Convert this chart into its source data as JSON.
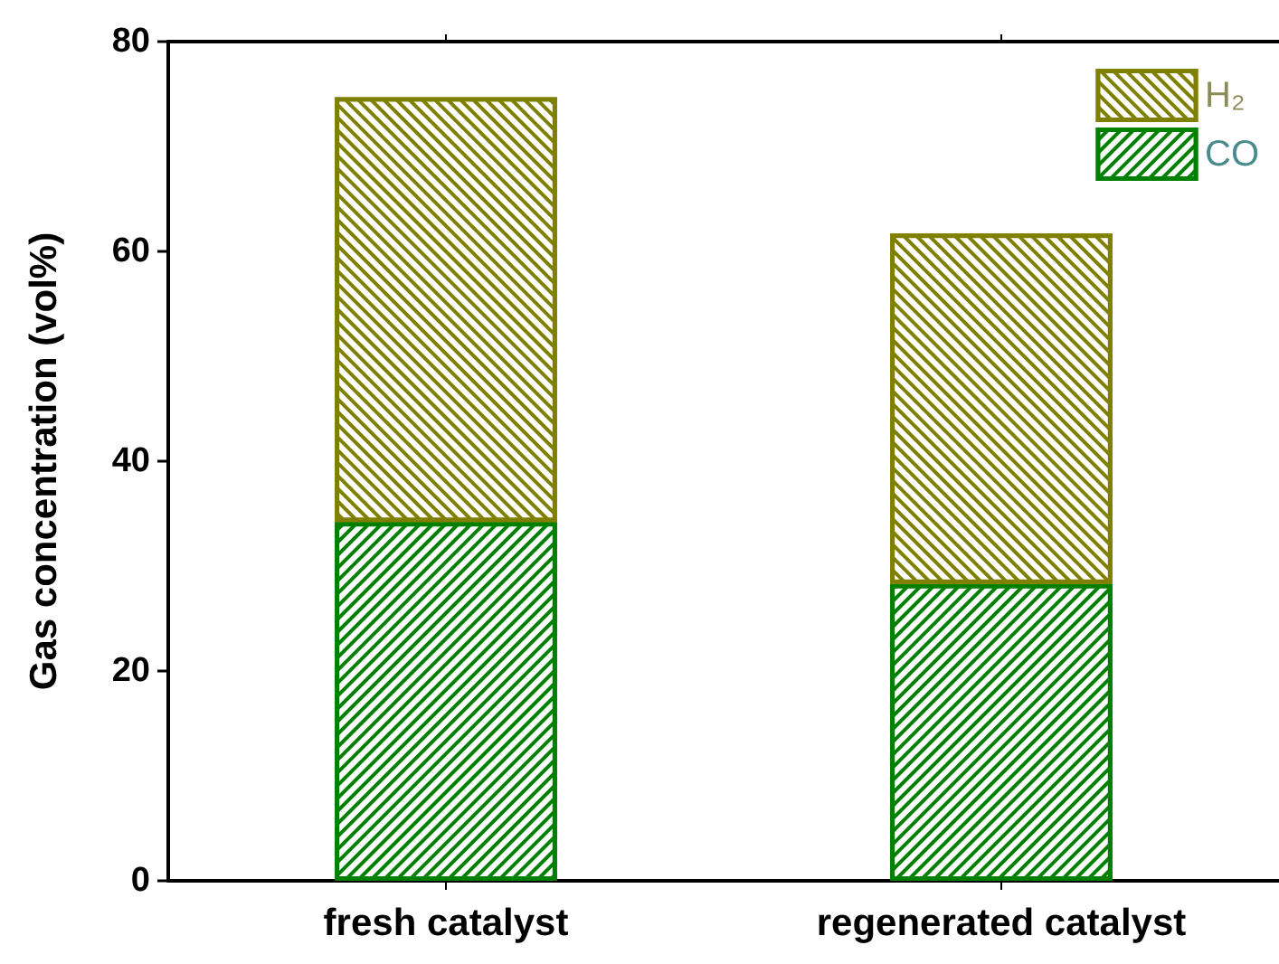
{
  "chart_data": {
    "type": "bar",
    "ylabel": "Gas concentration (vol%)",
    "categories": [
      "fresh catalyst",
      "regenerated catalyst"
    ],
    "stacked": true,
    "series": [
      {
        "name": "CO",
        "color": "#008000",
        "values": [
          34.2,
          28.3
        ]
      },
      {
        "name": "H₂",
        "color": "#808000",
        "values": [
          40.5,
          33.4
        ]
      }
    ],
    "ylim": [
      0,
      80
    ],
    "yticks": [
      0,
      20,
      40,
      60,
      80
    ],
    "grid": false,
    "legend": "top right"
  }
}
